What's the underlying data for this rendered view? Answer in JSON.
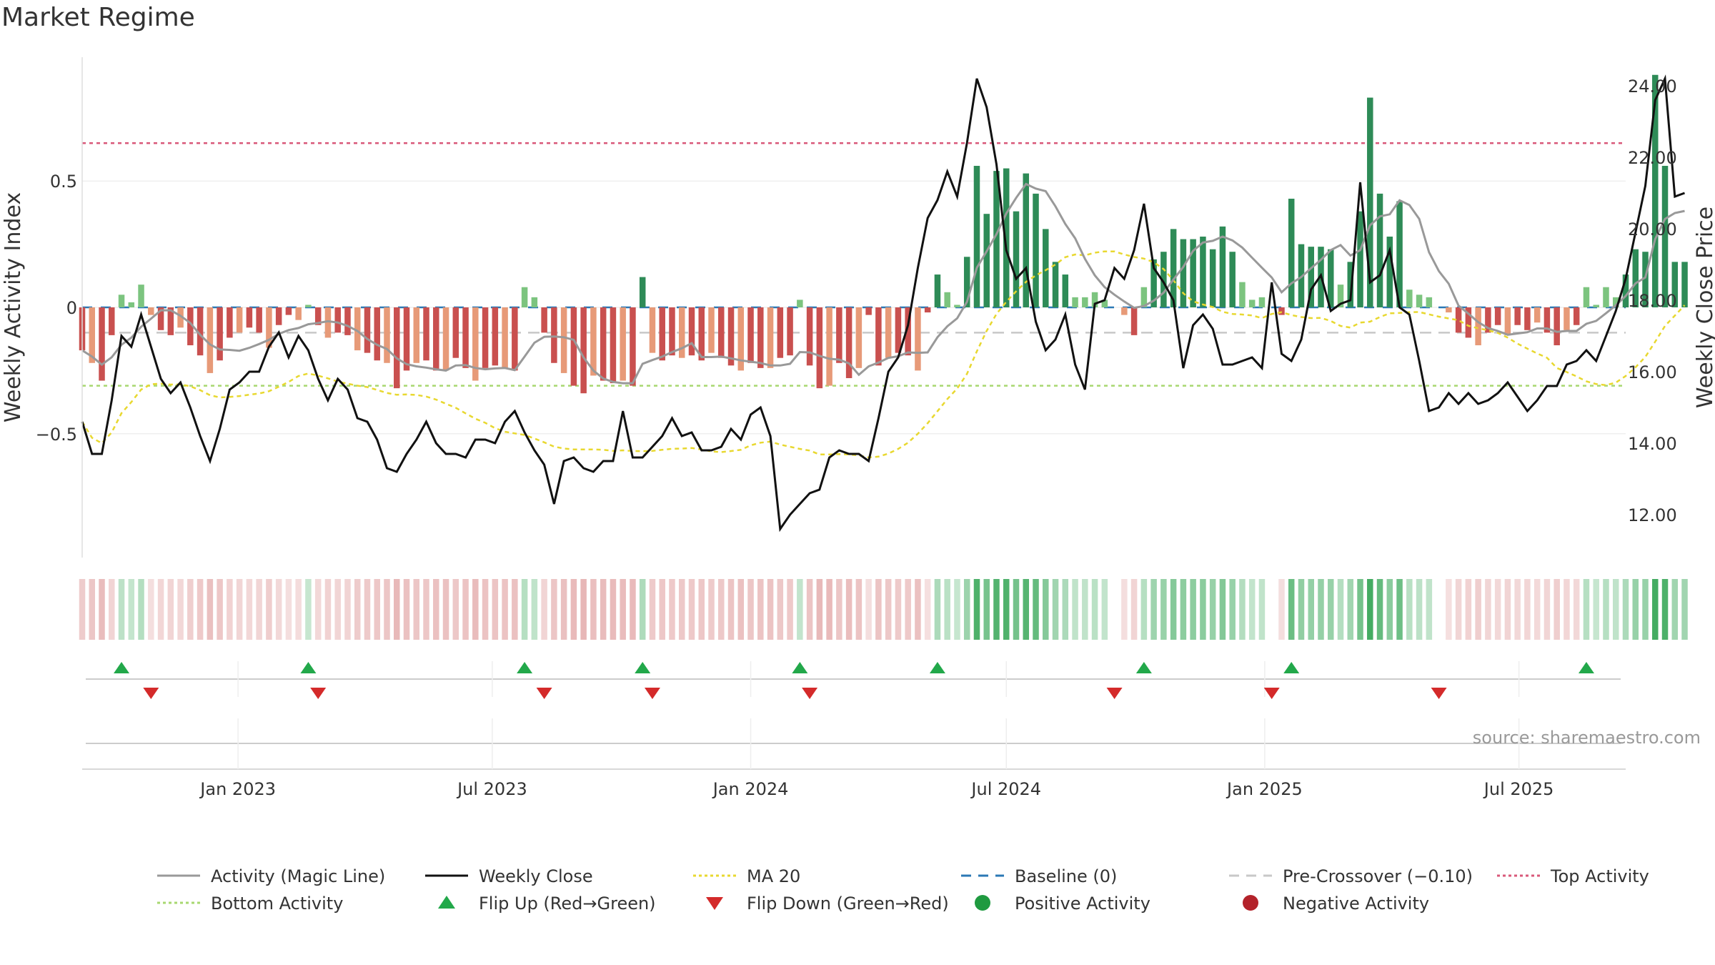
{
  "chart_data": {
    "type": "bar",
    "title": "Market Regime",
    "ylabel_left": "Weekly Activity Index",
    "ylabel_right": "Weekly Close Price",
    "source": "source: sharemaestro.com",
    "left_axis": {
      "ylim": [
        -0.99,
        0.99
      ],
      "ticks": [
        0.5,
        0,
        -0.5
      ],
      "tick_labels": [
        "0.5",
        "0",
        "−0.5"
      ]
    },
    "right_axis": {
      "ylim": [
        10.8,
        24.8
      ],
      "ticks": [
        24,
        22,
        20,
        18,
        16,
        14,
        12
      ],
      "tick_labels": [
        "24.00",
        "22.00",
        "20.00",
        "18.00",
        "16.00",
        "14.00",
        "12.00"
      ]
    },
    "x_axis": {
      "start": "2022-09-12",
      "end": "2025-09-15",
      "ticks": [
        "2023-01-01",
        "2023-07-01",
        "2024-01-01",
        "2024-07-01",
        "2025-01-01",
        "2025-07-01"
      ],
      "tick_labels": [
        "Jan 2023",
        "Jul 2023",
        "Jan 2024",
        "Jul 2024",
        "Jan 2025",
        "Jul 2025"
      ]
    },
    "reference_lines": {
      "top_activity": 0.65,
      "bottom_activity": -0.31,
      "pre_crossover": -0.1,
      "baseline": 0
    },
    "weeks_start": "2022-09-12",
    "activity_bars": [
      -0.17,
      -0.22,
      -0.29,
      -0.11,
      0.05,
      0.02,
      0.09,
      -0.03,
      -0.09,
      -0.11,
      -0.08,
      -0.15,
      -0.19,
      -0.26,
      -0.21,
      -0.12,
      -0.1,
      -0.08,
      -0.1,
      -0.16,
      -0.07,
      -0.03,
      -0.05,
      0.01,
      -0.07,
      -0.12,
      -0.1,
      -0.11,
      -0.17,
      -0.18,
      -0.21,
      -0.22,
      -0.32,
      -0.25,
      -0.22,
      -0.21,
      -0.25,
      -0.25,
      -0.2,
      -0.24,
      -0.29,
      -0.24,
      -0.23,
      -0.24,
      -0.25,
      0.08,
      0.04,
      -0.1,
      -0.22,
      -0.26,
      -0.31,
      -0.34,
      -0.27,
      -0.29,
      -0.3,
      -0.29,
      -0.31,
      0.12,
      -0.18,
      -0.21,
      -0.19,
      -0.2,
      -0.19,
      -0.21,
      -0.18,
      -0.2,
      -0.23,
      -0.25,
      -0.22,
      -0.24,
      -0.24,
      -0.2,
      -0.19,
      0.03,
      -0.23,
      -0.32,
      -0.31,
      -0.22,
      -0.28,
      -0.24,
      -0.03,
      -0.23,
      -0.2,
      -0.18,
      -0.19,
      -0.25,
      -0.02,
      0.13,
      0.06,
      0.01,
      0.2,
      0.56,
      0.37,
      0.54,
      0.55,
      0.38,
      0.53,
      0.45,
      0.31,
      0.18,
      0.13,
      0.04,
      0.04,
      0.06,
      0.03,
      0.0,
      -0.03,
      -0.11,
      0.08,
      0.19,
      0.22,
      0.31,
      0.27,
      0.27,
      0.28,
      0.23,
      0.32,
      0.22,
      0.1,
      0.03,
      0.04,
      0.0,
      -0.03,
      0.43,
      0.25,
      0.24,
      0.24,
      0.23,
      0.09,
      0.18,
      0.38,
      0.83,
      0.45,
      0.28,
      0.42,
      0.07,
      0.05,
      0.04,
      0.0,
      -0.02,
      -0.1,
      -0.12,
      -0.15,
      -0.1,
      -0.07,
      -0.11,
      -0.07,
      -0.09,
      -0.06,
      -0.1,
      -0.15,
      -0.09,
      -0.07,
      0.08,
      0.01,
      0.08,
      0.04,
      0.13,
      0.23,
      0.22,
      0.92,
      0.56,
      0.18,
      0.18
    ],
    "weekly_close": [
      14.6,
      13.7,
      13.7,
      15.2,
      17.0,
      16.7,
      17.6,
      16.7,
      15.8,
      15.4,
      15.7,
      15.0,
      14.2,
      13.5,
      14.4,
      15.5,
      15.7,
      16.0,
      16.0,
      16.7,
      17.1,
      16.4,
      17.0,
      16.6,
      15.8,
      15.2,
      15.8,
      15.5,
      14.7,
      14.6,
      14.1,
      13.3,
      13.2,
      13.7,
      14.1,
      14.6,
      14.0,
      13.7,
      13.7,
      13.6,
      14.1,
      14.1,
      14.0,
      14.6,
      14.9,
      14.3,
      13.8,
      13.4,
      12.3,
      13.5,
      13.6,
      13.3,
      13.2,
      13.5,
      13.5,
      14.9,
      13.6,
      13.6,
      13.9,
      14.2,
      14.7,
      14.2,
      14.3,
      13.8,
      13.8,
      13.9,
      14.4,
      14.1,
      14.8,
      15.0,
      14.2,
      11.6,
      12.0,
      12.3,
      12.6,
      12.7,
      13.6,
      13.8,
      13.7,
      13.7,
      13.5,
      14.7,
      16.0,
      16.4,
      17.3,
      18.9,
      20.3,
      20.8,
      21.6,
      20.9,
      22.4,
      24.2,
      23.4,
      21.8,
      19.4,
      18.6,
      18.9,
      17.4,
      16.6,
      16.9,
      17.6,
      16.2,
      15.5,
      17.9,
      18.0,
      18.9,
      18.6,
      19.4,
      20.7,
      18.9,
      18.5,
      18.0,
      16.1,
      17.3,
      17.6,
      17.2,
      16.2,
      16.2,
      16.3,
      16.4,
      16.1,
      18.5,
      16.5,
      16.3,
      16.9,
      18.3,
      18.7,
      17.7,
      17.9,
      18.0,
      21.3,
      18.5,
      18.7,
      19.4,
      17.8,
      17.6,
      16.3,
      14.9,
      15.0,
      15.4,
      15.1,
      15.4,
      15.1,
      15.2,
      15.4,
      15.7,
      15.3,
      14.9,
      15.2,
      15.6,
      15.6,
      16.2,
      16.3,
      16.6,
      16.3,
      17.0,
      17.7,
      18.6,
      19.9,
      21.2,
      23.6,
      24.2,
      20.9,
      21.0
    ]
  },
  "legend": {
    "items": [
      {
        "label": "Activity (Magic Line)",
        "color": "#999999"
      },
      {
        "label": "Weekly Close",
        "color": "#111111"
      },
      {
        "label": "MA 20",
        "color": "#e8d830"
      },
      {
        "label": "Baseline (0)",
        "color": "#2b78b5"
      },
      {
        "label": "Pre-Crossover (−0.10)",
        "color": "#c8c8c8"
      },
      {
        "label": "Top Activity",
        "color": "#d9587a"
      },
      {
        "label": "Bottom Activity",
        "color": "#a8d870"
      },
      {
        "label": "Flip Up (Red→Green)",
        "color": "#22a84a"
      },
      {
        "label": "Flip Down (Green→Red)",
        "color": "#d42a2a"
      },
      {
        "label": "Positive Activity",
        "color": "#1f9a40"
      },
      {
        "label": "Negative Activity",
        "color": "#b3222a"
      }
    ]
  },
  "colors": {
    "pos_strong": "#2e8b57",
    "pos_weak": "#7cc47f",
    "neg_strong": "#c9504f",
    "neg_weak": "#e79a78",
    "regime_pos": "#3aa85a",
    "regime_neg": "#d98a8a"
  }
}
